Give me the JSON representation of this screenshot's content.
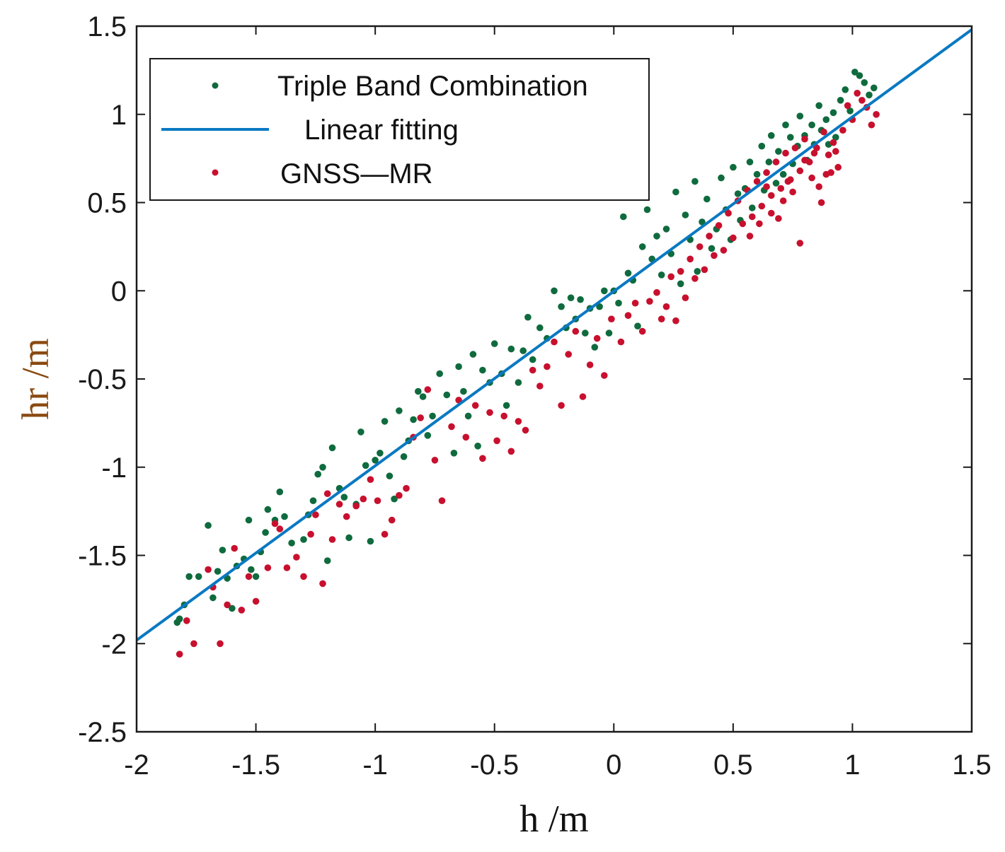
{
  "chart_data": {
    "type": "scatter",
    "title": "",
    "xlabel": "h /m",
    "ylabel": "hr /m",
    "xlim": [
      -2,
      1.5
    ],
    "ylim": [
      -2.5,
      1.5
    ],
    "x_ticks": [
      -2,
      -1.5,
      -1,
      -0.5,
      0,
      0.5,
      1,
      1.5
    ],
    "x_tick_labels": [
      "-2",
      "-1.5",
      "-1",
      "-0.5",
      "0",
      "0.5",
      "1",
      "1.5"
    ],
    "y_ticks": [
      -2.5,
      -2,
      -1.5,
      -1,
      -0.5,
      0,
      0.5,
      1,
      1.5
    ],
    "y_tick_labels": [
      "-2.5",
      "-2",
      "-1.5",
      "-1",
      "-0.5",
      "0",
      "0.5",
      "1",
      "1.5"
    ],
    "grid": false,
    "legend_position": "top-left",
    "legend": [
      "Triple Band Combination",
      "Linear fitting",
      "GNSS—MR"
    ],
    "colors": {
      "triple_band": "#0f6b3e",
      "gnss_mr": "#c8102e",
      "fit_line": "#0a79c2",
      "ylabel": "#8a4a12",
      "axis": "#1a1a1a"
    },
    "fit_line": {
      "slope": 0.989,
      "intercept": -0.003,
      "x_range": [
        -2,
        1.5
      ]
    },
    "series": [
      {
        "name": "Triple Band Combination",
        "marker": "dot",
        "points": [
          [
            -1.83,
            -1.88
          ],
          [
            -1.82,
            -1.86
          ],
          [
            -1.8,
            -1.78
          ],
          [
            -1.78,
            -1.62
          ],
          [
            -1.74,
            -1.62
          ],
          [
            -1.7,
            -1.33
          ],
          [
            -1.68,
            -1.74
          ],
          [
            -1.66,
            -1.59
          ],
          [
            -1.64,
            -1.47
          ],
          [
            -1.62,
            -1.63
          ],
          [
            -1.6,
            -1.8
          ],
          [
            -1.58,
            -1.56
          ],
          [
            -1.55,
            -1.52
          ],
          [
            -1.53,
            -1.3
          ],
          [
            -1.52,
            -1.58
          ],
          [
            -1.5,
            -1.62
          ],
          [
            -1.48,
            -1.48
          ],
          [
            -1.46,
            -1.37
          ],
          [
            -1.45,
            -1.24
          ],
          [
            -1.42,
            -1.3
          ],
          [
            -1.4,
            -1.14
          ],
          [
            -1.38,
            -1.28
          ],
          [
            -1.35,
            -1.43
          ],
          [
            -1.3,
            -1.41
          ],
          [
            -1.28,
            -1.27
          ],
          [
            -1.26,
            -1.19
          ],
          [
            -1.24,
            -1.04
          ],
          [
            -1.22,
            -1.0
          ],
          [
            -1.2,
            -1.53
          ],
          [
            -1.18,
            -0.89
          ],
          [
            -1.15,
            -1.12
          ],
          [
            -1.13,
            -1.17
          ],
          [
            -1.11,
            -1.4
          ],
          [
            -1.08,
            -1.21
          ],
          [
            -1.06,
            -0.8
          ],
          [
            -1.04,
            -0.99
          ],
          [
            -1.02,
            -1.42
          ],
          [
            -1.0,
            -0.96
          ],
          [
            -0.98,
            -0.92
          ],
          [
            -0.96,
            -0.74
          ],
          [
            -0.94,
            -1.05
          ],
          [
            -0.92,
            -1.18
          ],
          [
            -0.9,
            -0.68
          ],
          [
            -0.88,
            -0.94
          ],
          [
            -0.86,
            -0.85
          ],
          [
            -0.84,
            -0.73
          ],
          [
            -0.82,
            -0.57
          ],
          [
            -0.8,
            -0.6
          ],
          [
            -0.78,
            -0.82
          ],
          [
            -0.76,
            -0.71
          ],
          [
            -0.73,
            -0.47
          ],
          [
            -0.7,
            -0.59
          ],
          [
            -0.67,
            -0.92
          ],
          [
            -0.65,
            -0.43
          ],
          [
            -0.63,
            -0.57
          ],
          [
            -0.61,
            -0.71
          ],
          [
            -0.59,
            -0.36
          ],
          [
            -0.57,
            -0.88
          ],
          [
            -0.55,
            -0.45
          ],
          [
            -0.52,
            -0.52
          ],
          [
            -0.5,
            -0.3
          ],
          [
            -0.47,
            -0.47
          ],
          [
            -0.45,
            -0.65
          ],
          [
            -0.43,
            -0.33
          ],
          [
            -0.4,
            -0.52
          ],
          [
            -0.38,
            -0.34
          ],
          [
            -0.36,
            -0.15
          ],
          [
            -0.34,
            -0.39
          ],
          [
            -0.31,
            -0.21
          ],
          [
            -0.28,
            -0.27
          ],
          [
            -0.25,
            -0.0
          ],
          [
            -0.22,
            -0.09
          ],
          [
            -0.2,
            -0.21
          ],
          [
            -0.18,
            -0.04
          ],
          [
            -0.16,
            -0.16
          ],
          [
            -0.14,
            -0.05
          ],
          [
            -0.12,
            -0.24
          ],
          [
            -0.1,
            -0.1
          ],
          [
            -0.08,
            -0.32
          ],
          [
            -0.06,
            -0.09
          ],
          [
            -0.04,
            -0.0
          ],
          [
            -0.02,
            -0.24
          ],
          [
            0.0,
            0.0
          ],
          [
            0.02,
            -0.07
          ],
          [
            0.04,
            0.42
          ],
          [
            0.06,
            0.1
          ],
          [
            0.08,
            0.06
          ],
          [
            0.1,
            -0.2
          ],
          [
            0.12,
            0.25
          ],
          [
            0.14,
            0.46
          ],
          [
            0.16,
            0.18
          ],
          [
            0.18,
            0.31
          ],
          [
            0.2,
            0.09
          ],
          [
            0.22,
            0.35
          ],
          [
            0.24,
            0.21
          ],
          [
            0.26,
            0.56
          ],
          [
            0.28,
            0.04
          ],
          [
            0.3,
            0.43
          ],
          [
            0.32,
            0.29
          ],
          [
            0.34,
            0.62
          ],
          [
            0.35,
            0.11
          ],
          [
            0.37,
            0.39
          ],
          [
            0.39,
            0.52
          ],
          [
            0.41,
            0.24
          ],
          [
            0.43,
            0.35
          ],
          [
            0.45,
            0.64
          ],
          [
            0.47,
            0.46
          ],
          [
            0.49,
            0.29
          ],
          [
            0.5,
            0.7
          ],
          [
            0.52,
            0.55
          ],
          [
            0.53,
            0.4
          ],
          [
            0.55,
            0.58
          ],
          [
            0.57,
            0.73
          ],
          [
            0.58,
            0.47
          ],
          [
            0.6,
            0.66
          ],
          [
            0.62,
            0.82
          ],
          [
            0.63,
            0.57
          ],
          [
            0.65,
            0.73
          ],
          [
            0.66,
            0.88
          ],
          [
            0.68,
            0.61
          ],
          [
            0.69,
            0.79
          ],
          [
            0.71,
            0.66
          ],
          [
            0.72,
            0.94
          ],
          [
            0.74,
            0.87
          ],
          [
            0.75,
            0.72
          ],
          [
            0.77,
            0.82
          ],
          [
            0.78,
            0.99
          ],
          [
            0.8,
            0.88
          ],
          [
            0.81,
            0.74
          ],
          [
            0.83,
            0.94
          ],
          [
            0.84,
            0.83
          ],
          [
            0.86,
            1.05
          ],
          [
            0.87,
            0.91
          ],
          [
            0.89,
            0.97
          ],
          [
            0.9,
            0.83
          ],
          [
            0.92,
            1.01
          ],
          [
            0.93,
            0.87
          ],
          [
            0.95,
            1.08
          ],
          [
            0.97,
            1.14
          ],
          [
            0.99,
            1.02
          ],
          [
            1.01,
            1.24
          ],
          [
            1.03,
            1.22
          ],
          [
            1.05,
            1.18
          ],
          [
            1.07,
            1.11
          ],
          [
            1.09,
            1.15
          ]
        ]
      },
      {
        "name": "GNSS—MR",
        "marker": "dot",
        "points": [
          [
            -1.82,
            -2.06
          ],
          [
            -1.79,
            -1.87
          ],
          [
            -1.76,
            -2.0
          ],
          [
            -1.7,
            -1.58
          ],
          [
            -1.68,
            -1.68
          ],
          [
            -1.65,
            -2.0
          ],
          [
            -1.62,
            -1.78
          ],
          [
            -1.59,
            -1.46
          ],
          [
            -1.56,
            -1.81
          ],
          [
            -1.53,
            -1.62
          ],
          [
            -1.5,
            -1.76
          ],
          [
            -1.45,
            -1.57
          ],
          [
            -1.42,
            -1.32
          ],
          [
            -1.4,
            -1.35
          ],
          [
            -1.37,
            -1.57
          ],
          [
            -1.33,
            -1.51
          ],
          [
            -1.3,
            -1.62
          ],
          [
            -1.27,
            -1.38
          ],
          [
            -1.25,
            -1.27
          ],
          [
            -1.22,
            -1.66
          ],
          [
            -1.2,
            -1.15
          ],
          [
            -1.18,
            -1.41
          ],
          [
            -1.15,
            -1.21
          ],
          [
            -1.12,
            -1.28
          ],
          [
            -1.08,
            -1.22
          ],
          [
            -1.05,
            -1.18
          ],
          [
            -1.02,
            -1.07
          ],
          [
            -0.99,
            -1.19
          ],
          [
            -0.96,
            -1.38
          ],
          [
            -0.93,
            -1.3
          ],
          [
            -0.9,
            -1.16
          ],
          [
            -0.87,
            -1.12
          ],
          [
            -0.84,
            -0.83
          ],
          [
            -0.81,
            -0.72
          ],
          [
            -0.78,
            -0.56
          ],
          [
            -0.75,
            -0.96
          ],
          [
            -0.72,
            -1.19
          ],
          [
            -0.68,
            -0.77
          ],
          [
            -0.65,
            -0.62
          ],
          [
            -0.62,
            -0.83
          ],
          [
            -0.58,
            -0.65
          ],
          [
            -0.55,
            -0.95
          ],
          [
            -0.52,
            -0.69
          ],
          [
            -0.49,
            -0.85
          ],
          [
            -0.46,
            -0.71
          ],
          [
            -0.43,
            -0.91
          ],
          [
            -0.4,
            -0.74
          ],
          [
            -0.37,
            -0.79
          ],
          [
            -0.34,
            -0.45
          ],
          [
            -0.31,
            -0.54
          ],
          [
            -0.28,
            -0.43
          ],
          [
            -0.25,
            -0.29
          ],
          [
            -0.22,
            -0.65
          ],
          [
            -0.19,
            -0.36
          ],
          [
            -0.16,
            -0.23
          ],
          [
            -0.13,
            -0.6
          ],
          [
            -0.1,
            -0.42
          ],
          [
            -0.07,
            -0.27
          ],
          [
            -0.04,
            -0.48
          ],
          [
            -0.01,
            -0.16
          ],
          [
            0.03,
            -0.29
          ],
          [
            0.06,
            -0.14
          ],
          [
            0.09,
            -0.07
          ],
          [
            0.12,
            -0.23
          ],
          [
            0.15,
            -0.06
          ],
          [
            0.18,
            -0.01
          ],
          [
            0.2,
            -0.16
          ],
          [
            0.22,
            -0.09
          ],
          [
            0.24,
            0.08
          ],
          [
            0.26,
            -0.17
          ],
          [
            0.28,
            0.11
          ],
          [
            0.3,
            -0.04
          ],
          [
            0.32,
            0.18
          ],
          [
            0.34,
            0.07
          ],
          [
            0.36,
            0.25
          ],
          [
            0.38,
            0.12
          ],
          [
            0.4,
            0.31
          ],
          [
            0.42,
            0.2
          ],
          [
            0.44,
            0.37
          ],
          [
            0.46,
            0.23
          ],
          [
            0.48,
            0.44
          ],
          [
            0.5,
            0.3
          ],
          [
            0.52,
            0.51
          ],
          [
            0.54,
            0.38
          ],
          [
            0.56,
            0.57
          ],
          [
            0.58,
            0.42
          ],
          [
            0.6,
            0.62
          ],
          [
            0.62,
            0.48
          ],
          [
            0.64,
            0.67
          ],
          [
            0.66,
            0.54
          ],
          [
            0.68,
            0.73
          ],
          [
            0.7,
            0.58
          ],
          [
            0.72,
            0.78
          ],
          [
            0.74,
            0.63
          ],
          [
            0.76,
            0.81
          ],
          [
            0.78,
            0.68
          ],
          [
            0.8,
            0.86
          ],
          [
            0.82,
            0.73
          ],
          [
            0.84,
            0.78
          ],
          [
            0.86,
            0.59
          ],
          [
            0.88,
            0.9
          ],
          [
            0.9,
            0.77
          ],
          [
            0.92,
            0.84
          ],
          [
            0.94,
            0.7
          ],
          [
            0.96,
            0.91
          ],
          [
            0.98,
            1.05
          ],
          [
            1.0,
            0.97
          ],
          [
            1.02,
            1.12
          ],
          [
            1.04,
            1.08
          ],
          [
            1.06,
            1.04
          ],
          [
            1.08,
            0.94
          ],
          [
            1.1,
            1.0
          ],
          [
            0.61,
            0.38
          ],
          [
            0.66,
            0.44
          ],
          [
            0.71,
            0.51
          ],
          [
            0.75,
            0.56
          ],
          [
            0.78,
            0.27
          ],
          [
            0.83,
            0.64
          ],
          [
            0.87,
            0.5
          ],
          [
            0.91,
            0.67
          ],
          [
            0.69,
            0.41
          ],
          [
            0.73,
            0.62
          ],
          [
            0.8,
            0.74
          ],
          [
            0.85,
            0.81
          ],
          [
            0.89,
            0.66
          ],
          [
            0.93,
            0.79
          ],
          [
            0.57,
            0.31
          ],
          [
            0.64,
            0.59
          ]
        ]
      }
    ]
  }
}
